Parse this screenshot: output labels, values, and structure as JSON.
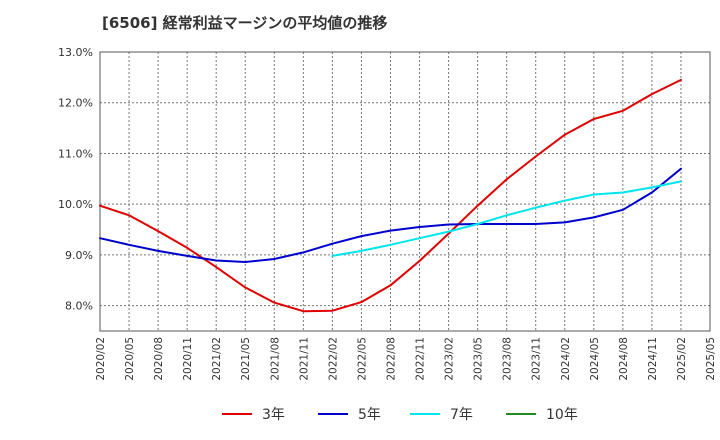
{
  "chart_data": {
    "type": "line",
    "title": "[6506]  経常利益マージンの平均値の推移",
    "ylim": [
      7.5,
      13.0
    ],
    "yticks": [
      8.0,
      9.0,
      10.0,
      11.0,
      12.0,
      13.0
    ],
    "ytick_labels": [
      "8.0%",
      "9.0%",
      "10.0%",
      "11.0%",
      "12.0%",
      "13.0%"
    ],
    "x_range": [
      "2020/02",
      "2025/05"
    ],
    "xtick_labels": [
      "2020/02",
      "2020/05",
      "2020/08",
      "2020/11",
      "2021/02",
      "2021/05",
      "2021/08",
      "2021/11",
      "2022/02",
      "2022/05",
      "2022/08",
      "2022/11",
      "2023/02",
      "2023/05",
      "2023/08",
      "2023/11",
      "2024/02",
      "2024/05",
      "2024/08",
      "2024/11",
      "2025/02",
      "2025/05"
    ],
    "grid": true,
    "legend_position": "bottom",
    "series": [
      {
        "name": "3年",
        "color": "#e00000",
        "points": [
          [
            "2020/02",
            9.97
          ],
          [
            "2020/05",
            9.78
          ],
          [
            "2020/08",
            9.47
          ],
          [
            "2020/11",
            9.14
          ],
          [
            "2021/02",
            8.76
          ],
          [
            "2021/05",
            8.36
          ],
          [
            "2021/08",
            8.06
          ],
          [
            "2021/11",
            7.89
          ],
          [
            "2022/02",
            7.9
          ],
          [
            "2022/05",
            8.07
          ],
          [
            "2022/08",
            8.4
          ],
          [
            "2022/11",
            8.88
          ],
          [
            "2023/02",
            9.42
          ],
          [
            "2023/05",
            9.97
          ],
          [
            "2023/08",
            10.49
          ],
          [
            "2023/11",
            10.94
          ],
          [
            "2024/02",
            11.37
          ],
          [
            "2024/05",
            11.68
          ],
          [
            "2024/08",
            11.84
          ],
          [
            "2024/11",
            12.17
          ],
          [
            "2025/02",
            12.45
          ]
        ]
      },
      {
        "name": "5年",
        "color": "#0000cc",
        "points": [
          [
            "2020/02",
            9.33
          ],
          [
            "2020/05",
            9.2
          ],
          [
            "2020/08",
            9.08
          ],
          [
            "2020/11",
            8.98
          ],
          [
            "2021/02",
            8.89
          ],
          [
            "2021/05",
            8.86
          ],
          [
            "2021/08",
            8.92
          ],
          [
            "2021/11",
            9.05
          ],
          [
            "2022/02",
            9.22
          ],
          [
            "2022/05",
            9.37
          ],
          [
            "2022/08",
            9.48
          ],
          [
            "2022/11",
            9.55
          ],
          [
            "2023/02",
            9.6
          ],
          [
            "2023/05",
            9.61
          ],
          [
            "2023/08",
            9.61
          ],
          [
            "2023/11",
            9.61
          ],
          [
            "2024/02",
            9.64
          ],
          [
            "2024/05",
            9.74
          ],
          [
            "2024/08",
            9.89
          ],
          [
            "2024/11",
            10.23
          ],
          [
            "2025/02",
            10.7
          ]
        ]
      },
      {
        "name": "7年",
        "color": "#00e5ee",
        "points": [
          [
            "2022/02",
            8.98
          ],
          [
            "2022/05",
            9.08
          ],
          [
            "2022/08",
            9.2
          ],
          [
            "2022/11",
            9.33
          ],
          [
            "2023/02",
            9.46
          ],
          [
            "2023/05",
            9.61
          ],
          [
            "2023/08",
            9.78
          ],
          [
            "2023/11",
            9.93
          ],
          [
            "2024/02",
            10.07
          ],
          [
            "2024/05",
            10.19
          ],
          [
            "2024/08",
            10.23
          ],
          [
            "2024/11",
            10.33
          ],
          [
            "2025/02",
            10.45
          ]
        ]
      },
      {
        "name": "10年",
        "color": "#228b22",
        "points": []
      }
    ]
  }
}
